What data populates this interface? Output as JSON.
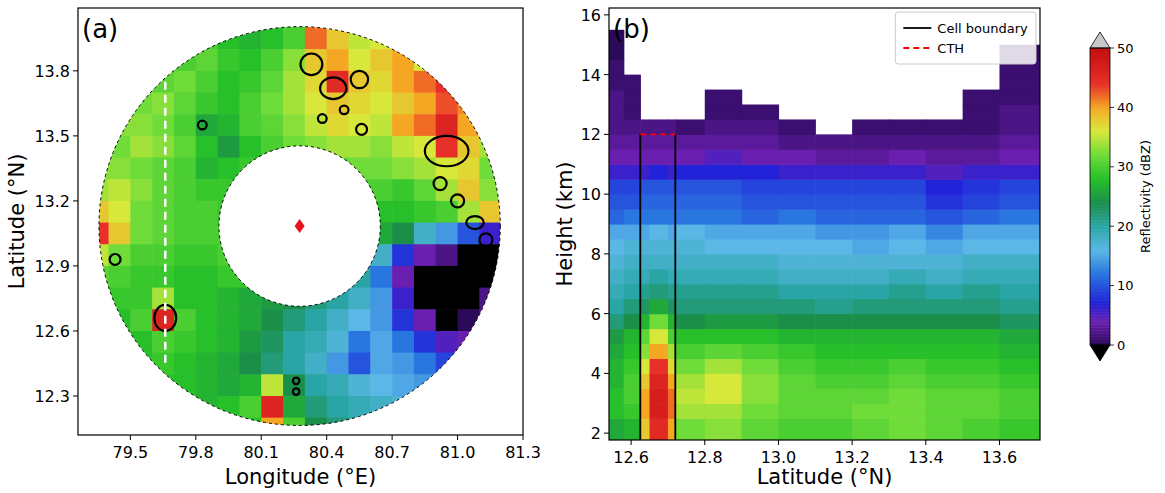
{
  "chart_data": [
    {
      "type": "heatmap",
      "title": "(a)",
      "xlabel": "Longitude (°E)",
      "ylabel": "Latitude (°N)",
      "xlim": [
        79.26,
        81.3
      ],
      "ylim": [
        12.12,
        14.09
      ],
      "xticks": [
        79.5,
        79.8,
        80.1,
        80.4,
        80.7,
        {
          "value": 81,
          "label": "81.0"
        },
        81.3
      ],
      "yticks": [
        12.3,
        12.6,
        12.9,
        13.2,
        13.5,
        13.8
      ],
      "x_edges": [
        79.3,
        79.4,
        79.5,
        79.6,
        79.7,
        79.8,
        79.9,
        80.0,
        80.1,
        80.2,
        80.3,
        80.4,
        80.5,
        80.6,
        80.7,
        80.8,
        80.9,
        81.0,
        81.1,
        81.2,
        81.3
      ],
      "y_edges": [
        14.1,
        14.0,
        13.9,
        13.8,
        13.7,
        13.6,
        13.5,
        13.4,
        13.3,
        13.2,
        13.1,
        13.0,
        12.9,
        12.8,
        12.7,
        12.6,
        12.5,
        12.4,
        12.3,
        12.2,
        12.1
      ],
      "z": [
        [
          null,
          null,
          null,
          null,
          null,
          null,
          null,
          null,
          28,
          30,
          40,
          null,
          null,
          null,
          null,
          null,
          null,
          null,
          null,
          null
        ],
        [
          null,
          null,
          null,
          null,
          null,
          30,
          28,
          27,
          28,
          30,
          42,
          38,
          35,
          36,
          null,
          null,
          null,
          null,
          null,
          null
        ],
        [
          null,
          null,
          null,
          null,
          30,
          31,
          29,
          28,
          30,
          33,
          38,
          40,
          36,
          38,
          40,
          36,
          null,
          null,
          null,
          null
        ],
        [
          null,
          null,
          null,
          31,
          32,
          30,
          28,
          29,
          31,
          34,
          37,
          45,
          38,
          37,
          40,
          42,
          44,
          null,
          null,
          null
        ],
        [
          null,
          null,
          32,
          33,
          31,
          29,
          28,
          30,
          32,
          34,
          36,
          38,
          37,
          36,
          38,
          40,
          43,
          41,
          null,
          null
        ],
        [
          null,
          33,
          33,
          32,
          30,
          26,
          27,
          30,
          31,
          33,
          35,
          37,
          36,
          35,
          40,
          42,
          46,
          40,
          null,
          null
        ],
        [
          null,
          32,
          34,
          33,
          31,
          28,
          25,
          28,
          30,
          32,
          33,
          34,
          34,
          33,
          35,
          36,
          44,
          38,
          34,
          null
        ],
        [
          33,
          33,
          32,
          31,
          30,
          27,
          28,
          29,
          null,
          null,
          null,
          31,
          32,
          32,
          33,
          34,
          36,
          37,
          32,
          null
        ],
        [
          34,
          35,
          33,
          31,
          30,
          29,
          29,
          null,
          null,
          null,
          null,
          null,
          30,
          30,
          29,
          31,
          34,
          38,
          33,
          null
        ],
        [
          38,
          36,
          32,
          31,
          30,
          30,
          29,
          null,
          null,
          null,
          null,
          null,
          null,
          28,
          28,
          29,
          30,
          34,
          38,
          12
        ],
        [
          44,
          38,
          32,
          31,
          30,
          30,
          30,
          null,
          null,
          null,
          null,
          null,
          null,
          26,
          24,
          18,
          14,
          10,
          6,
          3
        ],
        [
          35,
          32,
          30,
          30,
          29,
          29,
          30,
          null,
          null,
          null,
          null,
          null,
          24,
          18,
          8,
          4,
          2,
          -2,
          -4,
          null
        ],
        [
          31,
          30,
          29,
          29,
          28,
          28,
          29,
          29,
          null,
          null,
          null,
          null,
          20,
          12,
          4,
          -3,
          -5,
          -4,
          -2,
          null
        ],
        [
          null,
          29,
          29,
          34,
          28,
          28,
          27,
          26,
          25,
          24,
          22,
          20,
          18,
          14,
          6,
          -2,
          -5,
          -3,
          2,
          null
        ],
        [
          null,
          28,
          30,
          46,
          30,
          28,
          27,
          26,
          24,
          22,
          20,
          18,
          16,
          14,
          8,
          4,
          -2,
          0,
          3,
          null
        ],
        [
          null,
          null,
          28,
          30,
          29,
          28,
          27,
          25,
          23,
          20,
          19,
          17,
          12,
          15,
          12,
          8,
          5,
          4,
          null,
          null
        ],
        [
          null,
          null,
          28,
          29,
          28,
          27,
          26,
          24,
          22,
          20,
          18,
          14,
          10,
          15,
          14,
          12,
          9,
          null,
          null,
          null
        ],
        [
          null,
          null,
          null,
          28,
          28,
          27,
          26,
          27,
          35,
          24,
          20,
          19,
          17,
          16,
          15,
          14,
          null,
          null,
          null,
          null
        ],
        [
          null,
          null,
          null,
          null,
          null,
          27,
          28,
          30,
          46,
          26,
          22,
          20,
          19,
          18,
          17,
          null,
          null,
          null,
          null,
          null
        ],
        [
          null,
          null,
          null,
          null,
          null,
          null,
          null,
          28,
          40,
          30,
          24,
          22,
          20,
          null,
          null,
          null,
          null,
          null,
          null,
          null
        ]
      ],
      "radar_site": {
        "x": 80.276,
        "y": 13.084
      },
      "inner_radius": 0.37,
      "outer_radius": 0.92,
      "section": {
        "x": 79.66,
        "y": [
          12.45,
          13.75
        ]
      },
      "cells": {
        "x": [
          79.66,
          79.43,
          79.83,
          80.33,
          80.43,
          80.55,
          80.38,
          80.48,
          80.56,
          80.95,
          80.92,
          81.0,
          81.08,
          81.13,
          80.26,
          80.26
        ],
        "y": [
          12.66,
          12.93,
          13.55,
          13.83,
          13.72,
          13.76,
          13.58,
          13.62,
          13.53,
          13.43,
          13.28,
          13.2,
          13.1,
          13.02,
          12.37,
          12.32
        ],
        "rx": [
          0.05,
          0.025,
          0.02,
          0.05,
          0.06,
          0.04,
          0.02,
          0.02,
          0.025,
          0.1,
          0.03,
          0.03,
          0.04,
          0.03,
          0.015,
          0.015
        ],
        "ry": [
          0.06,
          0.025,
          0.02,
          0.05,
          0.05,
          0.04,
          0.02,
          0.02,
          0.025,
          0.07,
          0.03,
          0.03,
          0.03,
          0.03,
          0.015,
          0.015
        ]
      }
    },
    {
      "type": "heatmap",
      "title": "(b)",
      "xlabel": "Latitude (°N)",
      "ylabel": "Height (km)",
      "xlim": [
        12.54,
        13.71
      ],
      "ylim": [
        1.77,
        16.23
      ],
      "xticks": [
        12.6,
        12.8,
        {
          "value": 13,
          "label": "13.0"
        },
        13.2,
        13.4,
        13.6
      ],
      "yticks": [
        2,
        4,
        6,
        8,
        10,
        12,
        14,
        16
      ],
      "x_edges": [
        12.54,
        12.58,
        12.625,
        12.65,
        12.7,
        12.72,
        12.8,
        12.9,
        13.0,
        13.1,
        13.2,
        13.3,
        13.4,
        13.5,
        13.6,
        13.71
      ],
      "y_edges": [
        1.77,
        2.5,
        3,
        3.5,
        4,
        4.5,
        5,
        5.5,
        6,
        6.5,
        7,
        7.5,
        8,
        8.5,
        9,
        9.5,
        10,
        10.5,
        11,
        11.5,
        12,
        12.5,
        13,
        13.5,
        14,
        14.5,
        15,
        15.5
      ],
      "z": [
        [
          26,
          28,
          28,
          27,
          27,
          26,
          25,
          22,
          20,
          19,
          18,
          17,
          16,
          15,
          11,
          10,
          9,
          6,
          4,
          3,
          2,
          2,
          2,
          1,
          1,
          0,
          0
        ],
        [
          27,
          29,
          30,
          30,
          29,
          28,
          27,
          24,
          22,
          20,
          19,
          18,
          17,
          15,
          12,
          10,
          9,
          6,
          4,
          3,
          2,
          1,
          1,
          1,
          null,
          null,
          null
        ],
        [
          38,
          40,
          40,
          38,
          36,
          33,
          31,
          27,
          23,
          21,
          19,
          18,
          17,
          15,
          12,
          11,
          10,
          6,
          4,
          3,
          2,
          null,
          null,
          null,
          null,
          null,
          null
        ],
        [
          45,
          47,
          47,
          46,
          44,
          40,
          36,
          32,
          26,
          22,
          20,
          18,
          17,
          16,
          12,
          11,
          10,
          7,
          4,
          3,
          2,
          null,
          null,
          null,
          null,
          null,
          null
        ],
        [
          40,
          42,
          42,
          40,
          37,
          34,
          30,
          27,
          23,
          21,
          19,
          18,
          17,
          15,
          12,
          11,
          10,
          6,
          4,
          3,
          2,
          null,
          null,
          null,
          null,
          null,
          null
        ],
        [
          32,
          34,
          35,
          34,
          32,
          30,
          28,
          24,
          22,
          21,
          19,
          18,
          17,
          16,
          12,
          11,
          10,
          7,
          4,
          3,
          1,
          null,
          null,
          null,
          null,
          null,
          null
        ],
        [
          33,
          34,
          36,
          36,
          34,
          31,
          28,
          25,
          22,
          21,
          19,
          18,
          16,
          15,
          12,
          11,
          10,
          7,
          5,
          3,
          2,
          1,
          1,
          null,
          null,
          null,
          null
        ],
        [
          31,
          32,
          33,
          33,
          32,
          30,
          28,
          25,
          22,
          21,
          19,
          18,
          16,
          15,
          11,
          10,
          9,
          7,
          4,
          3,
          2,
          1,
          null,
          null,
          null,
          null,
          null
        ],
        [
          30,
          31,
          31,
          31,
          30,
          29,
          27,
          24,
          22,
          20,
          18,
          17,
          16,
          15,
          12,
          10,
          9,
          6,
          4,
          2,
          1,
          null,
          null,
          null,
          null,
          null,
          null
        ],
        [
          30,
          31,
          31,
          30,
          29,
          28,
          27,
          24,
          21,
          20,
          18,
          17,
          16,
          14,
          11,
          10,
          9,
          6,
          3,
          2,
          null,
          null,
          null,
          null,
          null,
          null,
          null
        ],
        [
          31,
          32,
          31,
          30,
          29,
          28,
          27,
          24,
          22,
          20,
          18,
          17,
          15,
          14,
          11,
          10,
          9,
          6,
          3,
          2,
          1,
          null,
          null,
          null,
          null,
          null,
          null
        ],
        [
          32,
          32,
          32,
          31,
          30,
          28,
          27,
          24,
          22,
          21,
          19,
          17,
          16,
          15,
          11,
          10,
          9,
          6,
          4,
          2,
          1,
          null,
          null,
          null,
          null,
          null,
          null
        ],
        [
          31,
          31,
          31,
          30,
          29,
          28,
          27,
          24,
          22,
          20,
          18,
          17,
          15,
          13,
          10,
          8,
          7,
          5,
          3,
          2,
          1,
          null,
          null,
          null,
          null,
          null,
          null
        ],
        [
          30,
          31,
          31,
          30,
          29,
          28,
          27,
          24,
          22,
          21,
          19,
          18,
          16,
          15,
          11,
          9,
          8,
          6,
          3,
          2,
          1,
          1,
          1,
          null,
          null,
          null,
          null
        ],
        [
          29,
          30,
          30,
          29,
          28,
          27,
          26,
          23,
          21,
          20,
          19,
          18,
          16,
          15,
          12,
          10,
          9,
          6,
          4,
          3,
          2,
          2,
          1,
          1,
          1,
          0,
          null
        ]
      ],
      "series": [
        {
          "name": "Cell boundary",
          "type": "vline",
          "color": "#000000",
          "line_style": "solid",
          "x": [
            12.625,
            12.72
          ],
          "values": [
            12.0,
            12.0
          ]
        },
        {
          "name": "CTH",
          "type": "line",
          "color": "#ff0000",
          "line_style": "dashed",
          "x": [
            12.625,
            12.72
          ],
          "values": [
            12.0,
            12.0
          ]
        }
      ],
      "legend": "upper right",
      "colorbar": {
        "label": "Reflectivity (dBZ)",
        "range": [
          0,
          50
        ],
        "ticks": [
          0,
          10,
          20,
          30,
          40,
          50
        ]
      }
    }
  ]
}
